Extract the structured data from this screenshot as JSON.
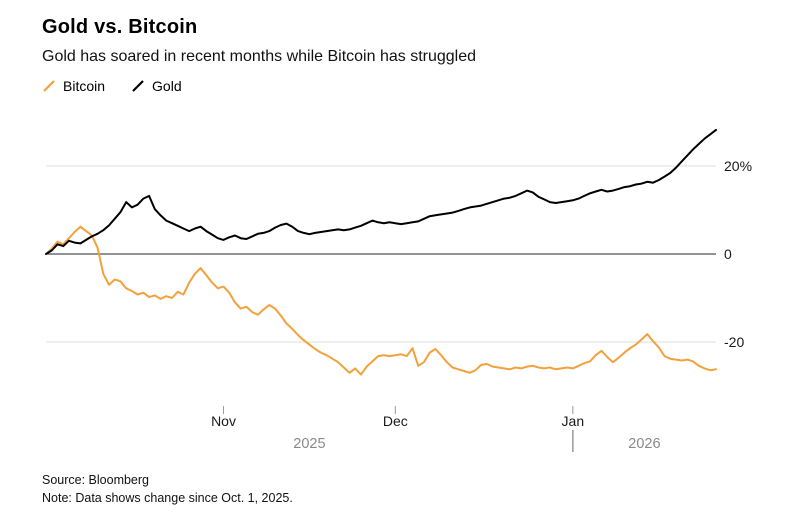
{
  "header": {
    "title": "Gold vs. Bitcoin",
    "subtitle": "Gold has soared in recent months while Bitcoin has struggled"
  },
  "legend": {
    "items": [
      {
        "label": "Bitcoin",
        "color": "#F2A13C"
      },
      {
        "label": "Gold",
        "color": "#000000"
      }
    ]
  },
  "footer": {
    "source": "Source: Bloomberg",
    "note": "Note: Data shows change since Oct. 1, 2025."
  },
  "chart_data": {
    "type": "line",
    "title": "Gold vs. Bitcoin",
    "subtitle": "Gold has soared in recent months while Bitcoin has struggled",
    "x_unit": "days since Oct 1, 2025",
    "x_range": [
      0,
      117
    ],
    "ylim": [
      -32,
      33
    ],
    "grid": "horizontal-only",
    "legend_position": "top-left",
    "grid_color": "#dcdcdc",
    "zero_line_color": "#6e6e6e",
    "axis_text_color": "#1a1a1a",
    "year_text_color": "#8a8a8a",
    "y_ticks": [
      {
        "value": 20,
        "label": "20%"
      },
      {
        "value": 0,
        "label": "0"
      },
      {
        "value": -20,
        "label": "-20"
      }
    ],
    "x_ticks": [
      {
        "day": 31,
        "label": "Nov"
      },
      {
        "day": 61,
        "label": "Dec"
      },
      {
        "day": 92,
        "label": "Jan"
      }
    ],
    "year_labels": [
      {
        "label": "2025",
        "center_day": 46
      },
      {
        "label": "2026",
        "center_day": 104.5
      }
    ],
    "year_boundary_day": 92,
    "series": [
      {
        "name": "Bitcoin",
        "color": "#F2A13C",
        "points": [
          [
            0,
            0
          ],
          [
            1,
            1.2
          ],
          [
            2,
            2.8
          ],
          [
            3,
            2.2
          ],
          [
            4,
            3.6
          ],
          [
            5,
            5.0
          ],
          [
            6,
            6.2
          ],
          [
            7,
            5.2
          ],
          [
            8,
            4.2
          ],
          [
            9,
            1.5
          ],
          [
            10,
            -4.5
          ],
          [
            11,
            -7.0
          ],
          [
            12,
            -5.8
          ],
          [
            13,
            -6.2
          ],
          [
            14,
            -7.8
          ],
          [
            15,
            -8.4
          ],
          [
            16,
            -9.2
          ],
          [
            17,
            -8.8
          ],
          [
            18,
            -9.8
          ],
          [
            19,
            -9.4
          ],
          [
            20,
            -10.2
          ],
          [
            21,
            -9.6
          ],
          [
            22,
            -10.0
          ],
          [
            23,
            -8.6
          ],
          [
            24,
            -9.2
          ],
          [
            25,
            -6.5
          ],
          [
            26,
            -4.5
          ],
          [
            27,
            -3.2
          ],
          [
            28,
            -4.8
          ],
          [
            29,
            -6.5
          ],
          [
            30,
            -7.8
          ],
          [
            31,
            -7.4
          ],
          [
            32,
            -8.8
          ],
          [
            33,
            -11.0
          ],
          [
            34,
            -12.4
          ],
          [
            35,
            -12.0
          ],
          [
            36,
            -13.2
          ],
          [
            37,
            -13.8
          ],
          [
            38,
            -12.6
          ],
          [
            39,
            -11.6
          ],
          [
            40,
            -12.4
          ],
          [
            41,
            -14.0
          ],
          [
            42,
            -15.8
          ],
          [
            43,
            -17.0
          ],
          [
            44,
            -18.4
          ],
          [
            45,
            -19.6
          ],
          [
            46,
            -20.6
          ],
          [
            47,
            -21.6
          ],
          [
            48,
            -22.4
          ],
          [
            49,
            -23.0
          ],
          [
            50,
            -23.8
          ],
          [
            51,
            -24.6
          ],
          [
            52,
            -25.8
          ],
          [
            53,
            -27.0
          ],
          [
            54,
            -26.0
          ],
          [
            55,
            -27.4
          ],
          [
            56,
            -25.6
          ],
          [
            57,
            -24.4
          ],
          [
            58,
            -23.2
          ],
          [
            59,
            -23.0
          ],
          [
            60,
            -23.2
          ],
          [
            61,
            -23.0
          ],
          [
            62,
            -22.8
          ],
          [
            63,
            -23.2
          ],
          [
            64,
            -21.4
          ],
          [
            65,
            -25.4
          ],
          [
            66,
            -24.6
          ],
          [
            67,
            -22.4
          ],
          [
            68,
            -21.6
          ],
          [
            69,
            -23.0
          ],
          [
            70,
            -24.6
          ],
          [
            71,
            -25.8
          ],
          [
            72,
            -26.2
          ],
          [
            73,
            -26.6
          ],
          [
            74,
            -27.0
          ],
          [
            75,
            -26.4
          ],
          [
            76,
            -25.2
          ],
          [
            77,
            -25.0
          ],
          [
            78,
            -25.6
          ],
          [
            79,
            -25.8
          ],
          [
            80,
            -26.0
          ],
          [
            81,
            -26.2
          ],
          [
            82,
            -25.8
          ],
          [
            83,
            -26.0
          ],
          [
            84,
            -25.6
          ],
          [
            85,
            -25.4
          ],
          [
            86,
            -25.8
          ],
          [
            87,
            -26.0
          ],
          [
            88,
            -25.8
          ],
          [
            89,
            -26.2
          ],
          [
            90,
            -26.0
          ],
          [
            91,
            -25.8
          ],
          [
            92,
            -26.0
          ],
          [
            93,
            -25.4
          ],
          [
            94,
            -24.8
          ],
          [
            95,
            -24.4
          ],
          [
            96,
            -23.0
          ],
          [
            97,
            -22.0
          ],
          [
            98,
            -23.4
          ],
          [
            99,
            -24.6
          ],
          [
            100,
            -23.6
          ],
          [
            101,
            -22.4
          ],
          [
            102,
            -21.4
          ],
          [
            103,
            -20.6
          ],
          [
            104,
            -19.4
          ],
          [
            105,
            -18.2
          ],
          [
            106,
            -19.8
          ],
          [
            107,
            -21.2
          ],
          [
            108,
            -23.2
          ],
          [
            109,
            -23.8
          ],
          [
            110,
            -24.0
          ],
          [
            111,
            -24.2
          ],
          [
            112,
            -24.0
          ],
          [
            113,
            -24.4
          ],
          [
            114,
            -25.4
          ],
          [
            115,
            -26.0
          ],
          [
            116,
            -26.4
          ],
          [
            117,
            -26.2
          ]
        ]
      },
      {
        "name": "Gold",
        "color": "#000000",
        "points": [
          [
            0,
            0
          ],
          [
            1,
            0.8
          ],
          [
            2,
            2.2
          ],
          [
            3,
            1.8
          ],
          [
            4,
            3.0
          ],
          [
            5,
            2.6
          ],
          [
            6,
            2.4
          ],
          [
            7,
            3.2
          ],
          [
            8,
            4.0
          ],
          [
            9,
            4.6
          ],
          [
            10,
            5.4
          ],
          [
            11,
            6.5
          ],
          [
            12,
            8.0
          ],
          [
            13,
            9.5
          ],
          [
            14,
            11.8
          ],
          [
            15,
            10.6
          ],
          [
            16,
            11.2
          ],
          [
            17,
            12.6
          ],
          [
            18,
            13.2
          ],
          [
            19,
            10.2
          ],
          [
            20,
            8.8
          ],
          [
            21,
            7.6
          ],
          [
            22,
            7.0
          ],
          [
            23,
            6.4
          ],
          [
            24,
            5.8
          ],
          [
            25,
            5.2
          ],
          [
            26,
            5.8
          ],
          [
            27,
            6.2
          ],
          [
            28,
            5.2
          ],
          [
            29,
            4.4
          ],
          [
            30,
            3.6
          ],
          [
            31,
            3.2
          ],
          [
            32,
            3.8
          ],
          [
            33,
            4.2
          ],
          [
            34,
            3.6
          ],
          [
            35,
            3.4
          ],
          [
            36,
            4.0
          ],
          [
            37,
            4.6
          ],
          [
            38,
            4.8
          ],
          [
            39,
            5.2
          ],
          [
            40,
            6.0
          ],
          [
            41,
            6.6
          ],
          [
            42,
            6.9
          ],
          [
            43,
            6.2
          ],
          [
            44,
            5.2
          ],
          [
            45,
            4.8
          ],
          [
            46,
            4.5
          ],
          [
            47,
            4.8
          ],
          [
            48,
            5.0
          ],
          [
            49,
            5.2
          ],
          [
            50,
            5.4
          ],
          [
            51,
            5.6
          ],
          [
            52,
            5.4
          ],
          [
            53,
            5.6
          ],
          [
            54,
            6.0
          ],
          [
            55,
            6.4
          ],
          [
            56,
            7.0
          ],
          [
            57,
            7.6
          ],
          [
            58,
            7.2
          ],
          [
            59,
            7.0
          ],
          [
            60,
            7.2
          ],
          [
            61,
            7.0
          ],
          [
            62,
            6.8
          ],
          [
            63,
            7.0
          ],
          [
            64,
            7.2
          ],
          [
            65,
            7.4
          ],
          [
            66,
            8.0
          ],
          [
            67,
            8.6
          ],
          [
            68,
            8.8
          ],
          [
            69,
            9.0
          ],
          [
            70,
            9.2
          ],
          [
            71,
            9.4
          ],
          [
            72,
            9.8
          ],
          [
            73,
            10.2
          ],
          [
            74,
            10.6
          ],
          [
            75,
            10.8
          ],
          [
            76,
            11.0
          ],
          [
            77,
            11.4
          ],
          [
            78,
            11.8
          ],
          [
            79,
            12.2
          ],
          [
            80,
            12.6
          ],
          [
            81,
            12.8
          ],
          [
            82,
            13.2
          ],
          [
            83,
            13.8
          ],
          [
            84,
            14.4
          ],
          [
            85,
            14.0
          ],
          [
            86,
            13.0
          ],
          [
            87,
            12.4
          ],
          [
            88,
            11.8
          ],
          [
            89,
            11.6
          ],
          [
            90,
            11.8
          ],
          [
            91,
            12.0
          ],
          [
            92,
            12.2
          ],
          [
            93,
            12.6
          ],
          [
            94,
            13.2
          ],
          [
            95,
            13.8
          ],
          [
            96,
            14.2
          ],
          [
            97,
            14.6
          ],
          [
            98,
            14.2
          ],
          [
            99,
            14.4
          ],
          [
            100,
            14.8
          ],
          [
            101,
            15.2
          ],
          [
            102,
            15.4
          ],
          [
            103,
            15.8
          ],
          [
            104,
            16.0
          ],
          [
            105,
            16.4
          ],
          [
            106,
            16.2
          ],
          [
            107,
            16.8
          ],
          [
            108,
            17.6
          ],
          [
            109,
            18.4
          ],
          [
            110,
            19.6
          ],
          [
            111,
            21.0
          ],
          [
            112,
            22.4
          ],
          [
            113,
            23.8
          ],
          [
            114,
            25.0
          ],
          [
            115,
            26.2
          ],
          [
            116,
            27.2
          ],
          [
            117,
            28.2
          ]
        ]
      }
    ]
  }
}
